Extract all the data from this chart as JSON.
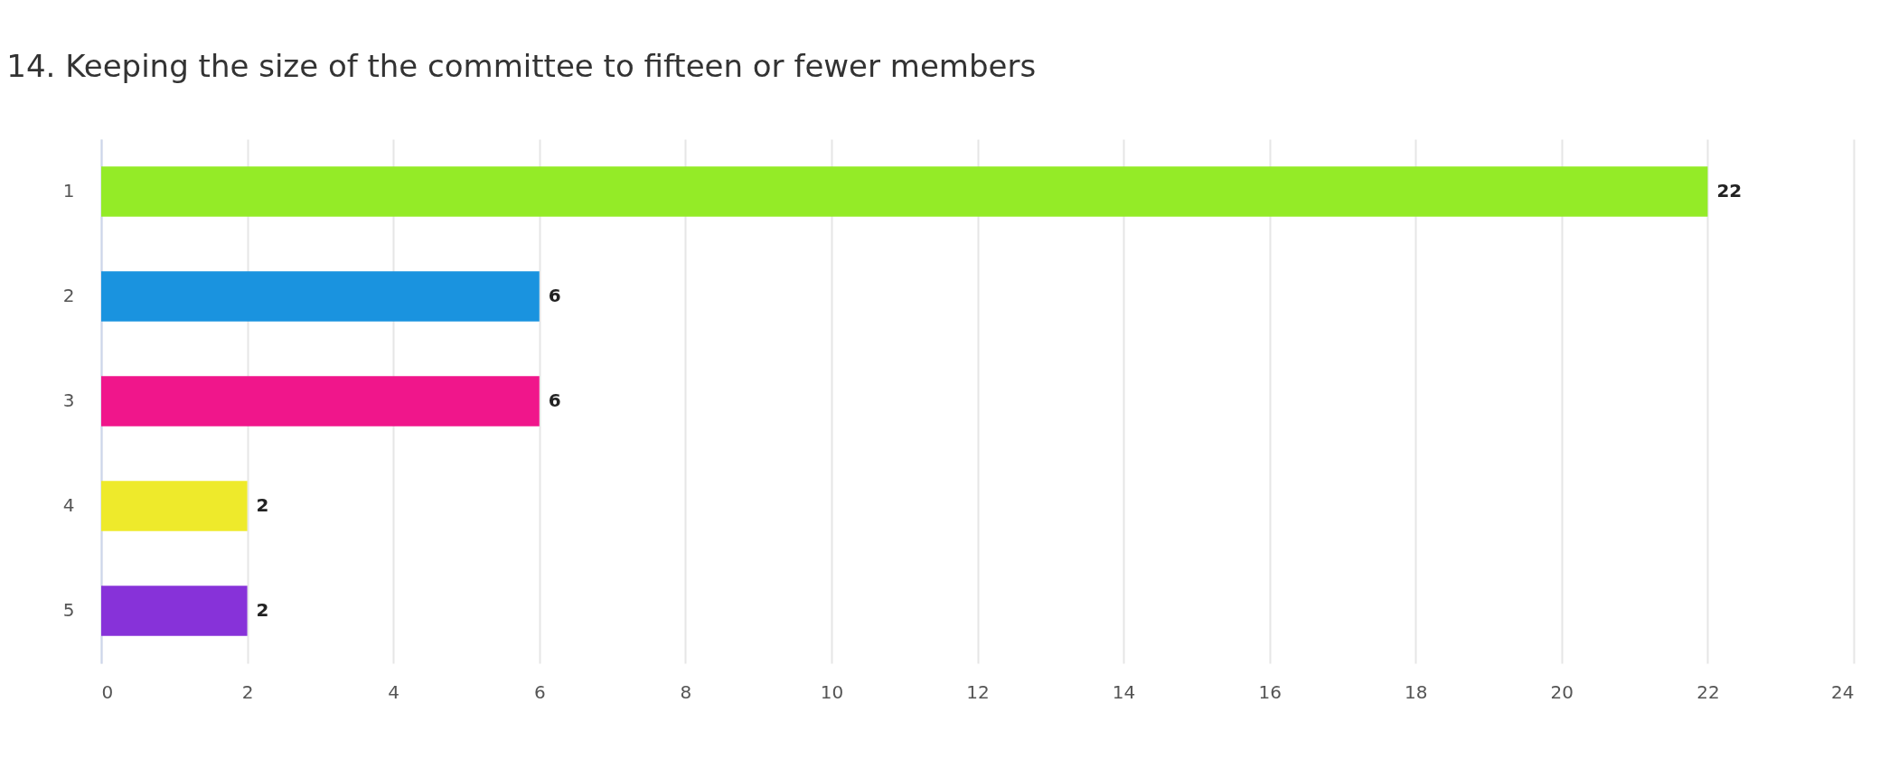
{
  "chart_data": {
    "type": "bar",
    "orientation": "horizontal",
    "title": "14. Keeping the size of the committee to fifteen or fewer members",
    "categories": [
      "1",
      "2",
      "3",
      "4",
      "5"
    ],
    "values": [
      22,
      6,
      6,
      2,
      2
    ],
    "colors": [
      "#94eb27",
      "#1a93df",
      "#f0168b",
      "#eeea2b",
      "#8732d9"
    ],
    "xlim": [
      0,
      24
    ],
    "xticks": [
      0,
      2,
      4,
      6,
      8,
      10,
      12,
      14,
      16,
      18,
      20,
      22,
      24
    ],
    "grid": "x",
    "data_labels": true
  }
}
